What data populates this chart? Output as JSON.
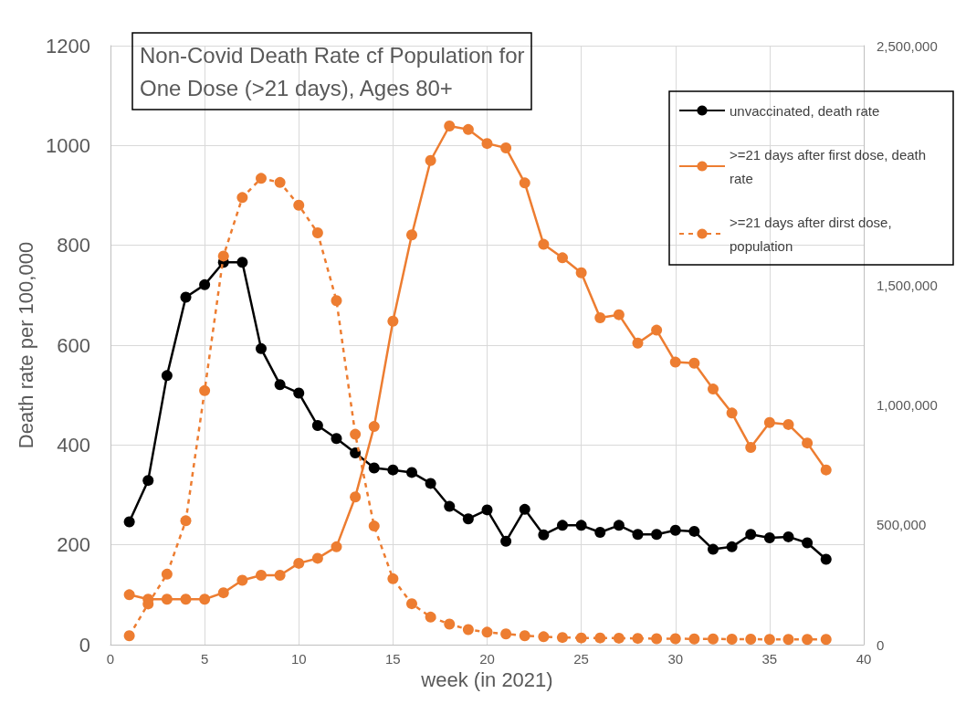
{
  "chart_data": {
    "type": "line",
    "title": "Non-Covid Death Rate cf Population for\nOne Dose (>21 days), Ages 80+",
    "xlabel": "week (in 2021)",
    "ylabel": "Death rate per 100,000",
    "x": [
      1,
      2,
      3,
      4,
      5,
      6,
      7,
      8,
      9,
      10,
      11,
      12,
      13,
      14,
      15,
      16,
      17,
      18,
      19,
      20,
      21,
      22,
      23,
      24,
      25,
      26,
      27,
      28,
      29,
      30,
      31,
      32,
      33,
      34,
      35,
      36,
      37,
      38
    ],
    "xlim": [
      0,
      40
    ],
    "xticks": [
      0,
      5,
      10,
      15,
      20,
      25,
      30,
      35,
      40
    ],
    "ylim": [
      0,
      1200
    ],
    "yticks": [
      0,
      200,
      400,
      600,
      800,
      1000,
      1200
    ],
    "y2lim": [
      0,
      2500000
    ],
    "y2ticks": [
      {
        "value": 0,
        "label": "0"
      },
      {
        "value": 500000,
        "label": "500,000"
      },
      {
        "value": 1000000,
        "label": "1,000,000"
      },
      {
        "value": 1500000,
        "label": "1,500,000"
      },
      {
        "value": 2500000,
        "label": "2,500,000"
      }
    ],
    "grid": true,
    "legend": "top right",
    "marker": "circle",
    "series": [
      {
        "name": "unvaccinated, death rate",
        "color": "#000000",
        "line_style": "solid",
        "values": [
          246,
          329,
          539,
          696,
          721,
          766,
          766,
          593,
          521,
          504,
          439,
          413,
          384,
          354,
          350,
          345,
          323,
          277,
          252,
          270,
          207,
          271,
          220,
          239,
          239,
          225,
          239,
          221,
          221,
          229,
          227,
          191,
          196,
          221,
          214,
          216,
          204,
          171
        ]
      },
      {
        "name": ">=21 days after first dose, death rate",
        "color": "#ed7d31",
        "line_style": "solid",
        "values": [
          100,
          91,
          91,
          91,
          91,
          104,
          129,
          139,
          139,
          163,
          173,
          196,
          296,
          437,
          648,
          821,
          970,
          1039,
          1032,
          1004,
          995,
          925,
          802,
          775,
          745,
          655,
          661,
          604,
          630,
          566,
          564,
          512,
          464,
          395,
          445,
          441,
          404,
          350
        ]
      },
      {
        "name": ">=21 days after dirst dose, population",
        "color": "#ed7d31",
        "line_style": "dashed",
        "axis": "y2",
        "values": [
          37000,
          170000,
          294000,
          517000,
          1060000,
          1622000,
          1866000,
          1946000,
          1929000,
          1834000,
          1719000,
          1436000,
          878000,
          495000,
          275000,
          171000,
          115000,
          86000,
          63000,
          52000,
          45000,
          37000,
          33000,
          30000,
          28000,
          28000,
          27000,
          26000,
          25000,
          25000,
          24000,
          24000,
          23000,
          23000,
          22000,
          22000,
          22000,
          22000
        ]
      }
    ]
  }
}
